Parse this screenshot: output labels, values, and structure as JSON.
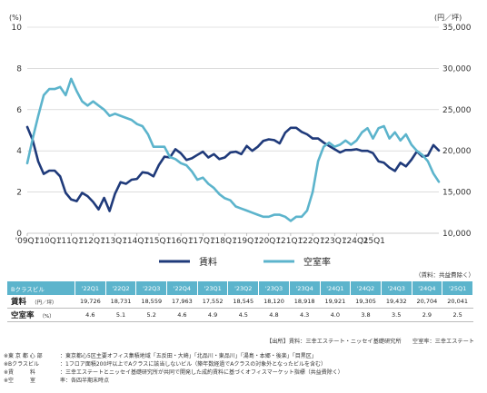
{
  "chart_data": {
    "type": "line",
    "y_left_unit": "(%)",
    "y_right_unit": "(円／坪)",
    "y_left_ticks": [
      "0",
      "2",
      "4",
      "6",
      "8",
      "10"
    ],
    "y_right_ticks": [
      "10,000",
      "15,000",
      "20,000",
      "25,000",
      "30,000",
      "35,000"
    ],
    "ylim_left": [
      0,
      10
    ],
    "ylim_right": [
      10000,
      35000
    ],
    "x_ticks": [
      "'09Q1",
      "'10Q1",
      "'11Q1",
      "'12Q1",
      "'13Q1",
      "'14Q1",
      "'15Q1",
      "'16Q1",
      "'17Q1",
      "'18Q1",
      "'19Q1",
      "'20Q1",
      "'21Q1",
      "'22Q1",
      "'23Q1",
      "'24Q1",
      "'25Q1"
    ],
    "grid": true,
    "legend_position": "bottom-center",
    "series": [
      {
        "name": "賃料",
        "axis": "right",
        "color": "#1f3a7a",
        "values": [
          22900,
          21300,
          18700,
          17200,
          17600,
          17600,
          16900,
          14900,
          14100,
          13900,
          14900,
          14500,
          13800,
          12900,
          14300,
          12700,
          14800,
          16200,
          16000,
          16500,
          16600,
          17400,
          17300,
          16900,
          18300,
          19300,
          19200,
          20200,
          19700,
          18900,
          19100,
          19500,
          19900,
          19200,
          19600,
          19000,
          19200,
          19800,
          19900,
          19600,
          20600,
          20000,
          20500,
          21200,
          21400,
          21300,
          20900,
          22200,
          22800,
          22800,
          22300,
          22000,
          21500,
          21500,
          21000,
          20600,
          20200,
          19800,
          20100,
          20100,
          20200,
          20000,
          20000,
          19726,
          18731,
          18559,
          17963,
          17552,
          18545,
          18120,
          18918,
          19921,
          19305,
          19432,
          20704,
          20041
        ]
      },
      {
        "name": "空室率",
        "axis": "left",
        "color": "#5cb4cc",
        "values": [
          3.4,
          4.6,
          5.7,
          6.7,
          7.0,
          7.0,
          7.1,
          6.7,
          7.5,
          6.9,
          6.4,
          6.2,
          6.4,
          6.2,
          6.0,
          5.7,
          5.8,
          5.7,
          5.6,
          5.5,
          5.3,
          5.2,
          4.8,
          4.2,
          4.2,
          4.2,
          3.7,
          3.6,
          3.4,
          3.3,
          3.0,
          2.6,
          2.7,
          2.4,
          2.2,
          1.9,
          1.7,
          1.6,
          1.3,
          1.2,
          1.1,
          1.0,
          0.9,
          0.8,
          0.8,
          0.9,
          0.9,
          0.8,
          0.6,
          0.8,
          0.8,
          1.1,
          2.0,
          3.5,
          4.2,
          4.4,
          4.2,
          4.3,
          4.5,
          4.3,
          4.5,
          4.9,
          5.1,
          4.6,
          5.1,
          5.2,
          4.6,
          4.9,
          4.5,
          4.8,
          4.3,
          4.0,
          3.8,
          3.5,
          2.9,
          2.5
        ]
      }
    ]
  },
  "table": {
    "note": "（賃料：共益費除く）",
    "header_label": "Bクラスビル",
    "quarters": [
      "'22Q1",
      "'22Q2",
      "'22Q3",
      "'22Q4",
      "'23Q1",
      "'23Q2",
      "'23Q3",
      "'23Q4",
      "'24Q1",
      "'24Q2",
      "'24Q3",
      "'24Q4",
      "'25Q1"
    ],
    "rows": [
      {
        "label": "賃料",
        "sub": "（円／坪）",
        "values": [
          "19,726",
          "18,731",
          "18,559",
          "17,963",
          "17,552",
          "18,545",
          "18,120",
          "18,918",
          "19,921",
          "19,305",
          "19,432",
          "20,704",
          "20,041"
        ]
      },
      {
        "label": "空室率",
        "sub": "（%）",
        "values": [
          "4.6",
          "5.1",
          "5.2",
          "4.6",
          "4.9",
          "4.5",
          "4.8",
          "4.3",
          "4.0",
          "3.8",
          "3.5",
          "2.9",
          "2.5"
        ]
      }
    ]
  },
  "source": "【出所】賃料：三幸エステート・ニッセイ基礎研究所　　空室率：三幸エステート",
  "notes": [
    {
      "key": "※東 京 都 心 部",
      "text": "：東京都心5区主要オフィス集積地域「五反田・大崎」「北品川・東品川」「湯島・本郷・後楽」「目黒区」"
    },
    {
      "key": "※Bクラスビル",
      "text": "：1フロア面積200坪以上でAクラスに該当しないビル（築年数経過でAクラスの対象外となったビルを含む）"
    },
    {
      "key": "※賃　　　料",
      "text": "：三幸エステートとニッセイ基礎研究所が共同で開発した成約賃料に基づくオフィスマーケット指標（共益費除く）"
    },
    {
      "key": "※空　　　室",
      "text": "率：各四半期末時点"
    }
  ]
}
